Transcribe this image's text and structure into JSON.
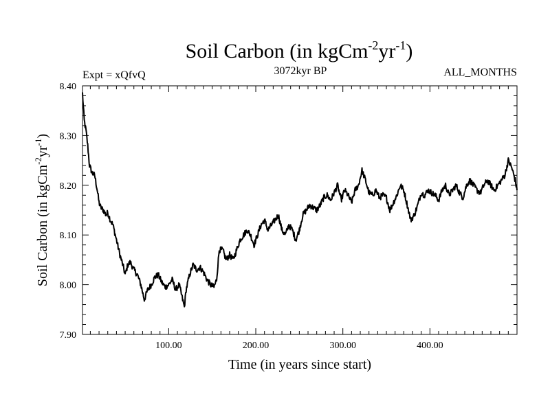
{
  "chart_data": {
    "type": "line",
    "title": "Soil Carbon (in kgCm",
    "title_unit_sup1": "-2",
    "title_unit_mid": "yr",
    "title_unit_sup2": "-1",
    "title_close": ")",
    "expt_label": "Expt = xQfvQ",
    "period_label": "3072kyr BP",
    "months_label": "ALL_MONTHS",
    "xlabel": "Time (in years since start)",
    "ylabel_main": "Soil Carbon (in kgCm",
    "ylabel_sup1": "-2",
    "ylabel_mid": "yr",
    "ylabel_sup2": "-1",
    "ylabel_close": ")",
    "xlim": [
      1,
      500
    ],
    "ylim": [
      7.9,
      8.4
    ],
    "x_ticks": [
      100,
      200,
      300,
      400
    ],
    "x_tick_labels": [
      "100.00",
      "200.00",
      "300.00",
      "400.00"
    ],
    "y_ticks": [
      7.9,
      8.0,
      8.1,
      8.2,
      8.3,
      8.4
    ],
    "y_tick_labels": [
      "7.90",
      "8.00",
      "8.10",
      "8.20",
      "8.30",
      "8.40"
    ],
    "series": [
      {
        "name": "Soil Carbon",
        "color": "#000000",
        "x": [
          1,
          3,
          5,
          7,
          9,
          12,
          15,
          18,
          20,
          22,
          25,
          28,
          30,
          33,
          36,
          40,
          44,
          48,
          50,
          53,
          56,
          60,
          64,
          68,
          72,
          76,
          80,
          84,
          88,
          92,
          96,
          100,
          104,
          108,
          112,
          116,
          118,
          120,
          124,
          128,
          132,
          136,
          140,
          144,
          148,
          152,
          155,
          158,
          162,
          166,
          170,
          174,
          178,
          182,
          186,
          190,
          194,
          198,
          202,
          206,
          210,
          214,
          218,
          222,
          226,
          230,
          234,
          238,
          242,
          246,
          250,
          254,
          258,
          262,
          266,
          270,
          274,
          278,
          282,
          286,
          290,
          294,
          298,
          302,
          306,
          310,
          314,
          318,
          322,
          326,
          330,
          334,
          338,
          342,
          346,
          350,
          354,
          358,
          362,
          366,
          370,
          374,
          378,
          382,
          386,
          390,
          394,
          398,
          402,
          406,
          410,
          414,
          418,
          422,
          426,
          430,
          434,
          438,
          442,
          446,
          450,
          454,
          458,
          462,
          466,
          470,
          474,
          478,
          482,
          486,
          490,
          494,
          498,
          500
        ],
        "values": [
          8.385,
          8.33,
          8.31,
          8.28,
          8.24,
          8.225,
          8.22,
          8.19,
          8.165,
          8.155,
          8.15,
          8.14,
          8.145,
          8.13,
          8.12,
          8.09,
          8.06,
          8.035,
          8.02,
          8.04,
          8.045,
          8.03,
          8.02,
          8.0,
          7.97,
          7.99,
          8.0,
          8.015,
          8.02,
          8.005,
          7.995,
          8.0,
          8.01,
          7.99,
          8.0,
          7.97,
          7.955,
          7.99,
          8.02,
          8.04,
          8.03,
          8.035,
          8.025,
          8.01,
          8.0,
          7.995,
          8.01,
          8.07,
          8.07,
          8.05,
          8.06,
          8.05,
          8.07,
          8.09,
          8.1,
          8.11,
          8.1,
          8.08,
          8.1,
          8.12,
          8.13,
          8.11,
          8.12,
          8.13,
          8.14,
          8.11,
          8.1,
          8.12,
          8.11,
          8.09,
          8.11,
          8.14,
          8.15,
          8.16,
          8.155,
          8.15,
          8.16,
          8.175,
          8.18,
          8.17,
          8.185,
          8.2,
          8.17,
          8.19,
          8.18,
          8.165,
          8.19,
          8.2,
          8.23,
          8.21,
          8.185,
          8.18,
          8.19,
          8.175,
          8.18,
          8.175,
          8.15,
          8.165,
          8.18,
          8.2,
          8.19,
          8.16,
          8.13,
          8.14,
          8.16,
          8.185,
          8.18,
          8.19,
          8.185,
          8.18,
          8.17,
          8.19,
          8.2,
          8.18,
          8.19,
          8.2,
          8.185,
          8.175,
          8.2,
          8.21,
          8.2,
          8.19,
          8.185,
          8.2,
          8.21,
          8.2,
          8.19,
          8.2,
          8.21,
          8.22,
          8.25,
          8.235,
          8.21,
          8.19
        ]
      }
    ]
  }
}
